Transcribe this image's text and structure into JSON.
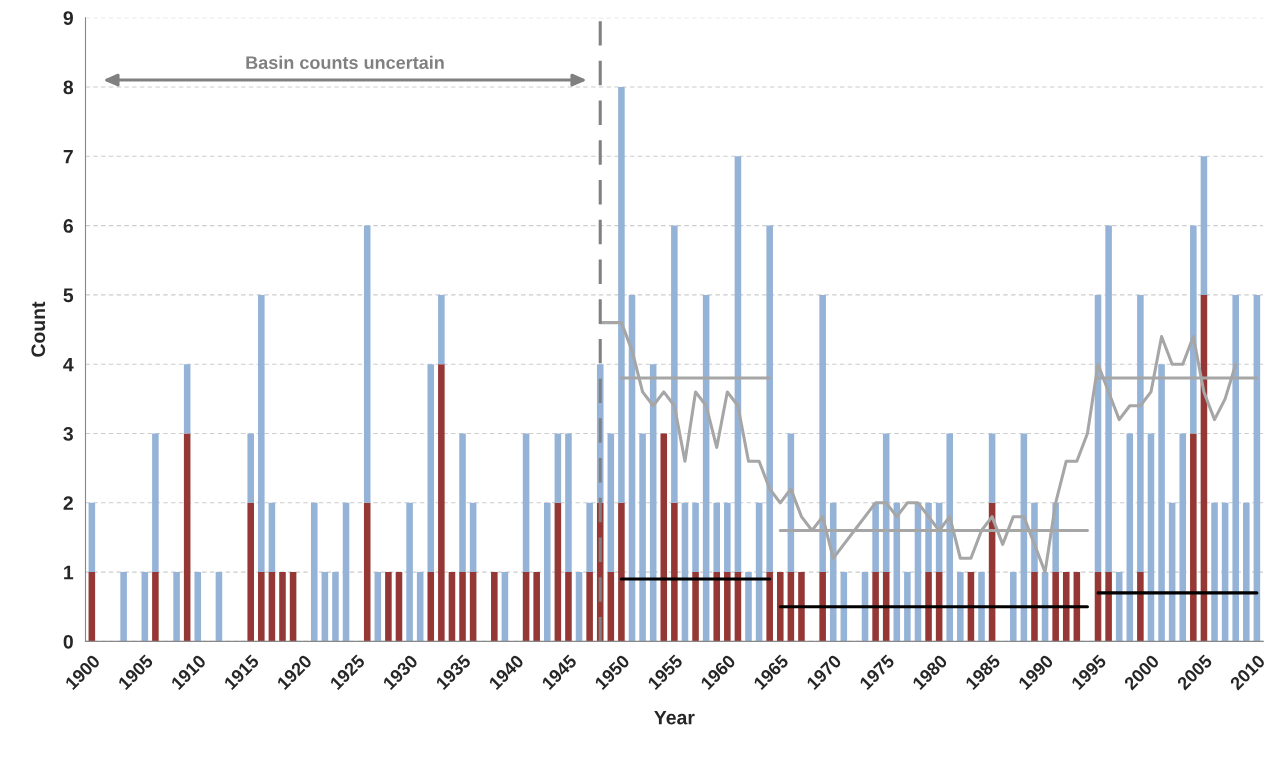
{
  "chart_data": {
    "type": "bar",
    "stacked": true,
    "xlabel": "Year",
    "ylabel": "Count",
    "x": [
      1900,
      1901,
      1902,
      1903,
      1904,
      1905,
      1906,
      1907,
      1908,
      1909,
      1910,
      1911,
      1912,
      1913,
      1914,
      1915,
      1916,
      1917,
      1918,
      1919,
      1920,
      1921,
      1922,
      1923,
      1924,
      1925,
      1926,
      1927,
      1928,
      1929,
      1930,
      1931,
      1932,
      1933,
      1934,
      1935,
      1936,
      1937,
      1938,
      1939,
      1940,
      1941,
      1942,
      1943,
      1944,
      1945,
      1946,
      1947,
      1948,
      1949,
      1950,
      1951,
      1952,
      1953,
      1954,
      1955,
      1956,
      1957,
      1958,
      1959,
      1960,
      1961,
      1962,
      1963,
      1964,
      1965,
      1966,
      1967,
      1968,
      1969,
      1970,
      1971,
      1972,
      1973,
      1974,
      1975,
      1976,
      1977,
      1978,
      1979,
      1980,
      1981,
      1982,
      1983,
      1984,
      1985,
      1986,
      1987,
      1988,
      1989,
      1990,
      1991,
      1992,
      1993,
      1994,
      1995,
      1996,
      1997,
      1998,
      1999,
      2000,
      2001,
      2002,
      2003,
      2004,
      2005,
      2006,
      2007,
      2008,
      2009,
      2010
    ],
    "series": [
      {
        "color": "#953735",
        "values": [
          1,
          0,
          0,
          0,
          0,
          0,
          1,
          0,
          0,
          3,
          0,
          0,
          0,
          0,
          0,
          2,
          1,
          1,
          1,
          1,
          0,
          0,
          0,
          0,
          0,
          0,
          2,
          0,
          1,
          1,
          0,
          0,
          1,
          4,
          1,
          1,
          1,
          0,
          1,
          0,
          0,
          1,
          1,
          0,
          2,
          1,
          0,
          1,
          2,
          1,
          2,
          0,
          0,
          0,
          3,
          2,
          0,
          1,
          0,
          1,
          1,
          1,
          0,
          0,
          1,
          1,
          1,
          1,
          0,
          1,
          0,
          0,
          0,
          0,
          1,
          1,
          0,
          0,
          0,
          1,
          1,
          0,
          0,
          1,
          0,
          2,
          0,
          0,
          0,
          1,
          0,
          1,
          1,
          1,
          0,
          1,
          1,
          0,
          0,
          1,
          0,
          0,
          0,
          0,
          3,
          5,
          0,
          0,
          0,
          0,
          0
        ]
      },
      {
        "color": "#95b3d7",
        "values": [
          1,
          0,
          0,
          1,
          0,
          1,
          2,
          0,
          1,
          1,
          1,
          0,
          1,
          0,
          0,
          1,
          4,
          1,
          0,
          0,
          0,
          2,
          1,
          1,
          2,
          0,
          4,
          1,
          0,
          0,
          2,
          1,
          3,
          1,
          0,
          2,
          1,
          0,
          0,
          1,
          0,
          2,
          0,
          2,
          1,
          2,
          1,
          1,
          2,
          2,
          6,
          5,
          3,
          4,
          0,
          4,
          2,
          1,
          5,
          1,
          1,
          6,
          1,
          2,
          5,
          0,
          2,
          0,
          0,
          4,
          2,
          1,
          0,
          1,
          1,
          2,
          2,
          1,
          2,
          1,
          1,
          3,
          1,
          0,
          1,
          1,
          0,
          1,
          3,
          1,
          1,
          1,
          0,
          0,
          0,
          4,
          5,
          1,
          3,
          4,
          3,
          4,
          2,
          3,
          3,
          2,
          2,
          2,
          5,
          2,
          5
        ]
      },
      {
        "type": "line",
        "color": "#a6a6a6",
        "x": [
          1948,
          1949,
          1950,
          1951,
          1952,
          1953,
          1954,
          1955,
          1956,
          1957,
          1958,
          1959,
          1960,
          1961,
          1962,
          1963,
          1964,
          1965,
          1966,
          1967,
          1968,
          1969,
          1970,
          1971,
          1972,
          1973,
          1974,
          1975,
          1976,
          1977,
          1978,
          1979,
          1980,
          1981,
          1982,
          1983,
          1984,
          1985,
          1986,
          1987,
          1988,
          1989,
          1990,
          1991,
          1992,
          1993,
          1994,
          1995,
          1996,
          1997,
          1998,
          1999,
          2000,
          2001,
          2002,
          2003,
          2004,
          2005,
          2006,
          2007,
          2008
        ],
        "values": [
          4.6,
          4.6,
          4.6,
          4.2,
          3.6,
          3.4,
          3.6,
          3.4,
          2.6,
          3.6,
          3.4,
          2.8,
          3.6,
          3.4,
          2.6,
          2.6,
          2.2,
          2.0,
          2.2,
          1.8,
          1.6,
          1.8,
          1.2,
          1.4,
          1.6,
          1.8,
          2.0,
          2.0,
          1.8,
          2.0,
          2.0,
          1.8,
          1.6,
          1.8,
          1.2,
          1.2,
          1.6,
          1.8,
          1.4,
          1.8,
          1.8,
          1.4,
          1.0,
          2.0,
          2.6,
          2.6,
          3.0,
          4.0,
          3.6,
          3.2,
          3.4,
          3.4,
          3.6,
          4.4,
          4.0,
          4.0,
          4.4,
          3.6,
          3.2,
          3.5,
          4.0
        ]
      },
      {
        "type": "line",
        "color": "#a6a6a6",
        "x": [
          1950,
          1964
        ],
        "values": [
          3.8,
          3.8
        ]
      },
      {
        "type": "line",
        "color": "#a6a6a6",
        "x": [
          1965,
          1994
        ],
        "values": [
          1.6,
          1.6
        ]
      },
      {
        "type": "line",
        "color": "#a6a6a6",
        "x": [
          1995,
          2010
        ],
        "values": [
          3.8,
          3.8
        ]
      },
      {
        "type": "line",
        "color": "#000000",
        "x": [
          1950,
          1964
        ],
        "values": [
          0.9,
          0.9
        ]
      },
      {
        "type": "line",
        "color": "#000000",
        "x": [
          1965,
          1994
        ],
        "values": [
          0.5,
          0.5
        ]
      },
      {
        "type": "line",
        "color": "#000000",
        "x": [
          1995,
          2010
        ],
        "values": [
          0.7,
          0.7
        ]
      }
    ],
    "xlim": [
      1899.4,
      2010.6
    ],
    "xticks": [
      1900,
      1905,
      1910,
      1915,
      1920,
      1925,
      1930,
      1935,
      1940,
      1945,
      1950,
      1955,
      1960,
      1965,
      1970,
      1975,
      1980,
      1985,
      1990,
      1995,
      2000,
      2005,
      2010
    ],
    "ylim": [
      0,
      9
    ],
    "yticks": [
      0,
      1,
      2,
      3,
      4,
      5,
      6,
      7,
      8,
      9
    ],
    "grid": "y",
    "ref_lines": [
      {
        "axis": "x",
        "value": 1948,
        "color": "#808080",
        "line_style": "dashed"
      }
    ],
    "annotations": [
      "Basin counts uncertain"
    ]
  }
}
